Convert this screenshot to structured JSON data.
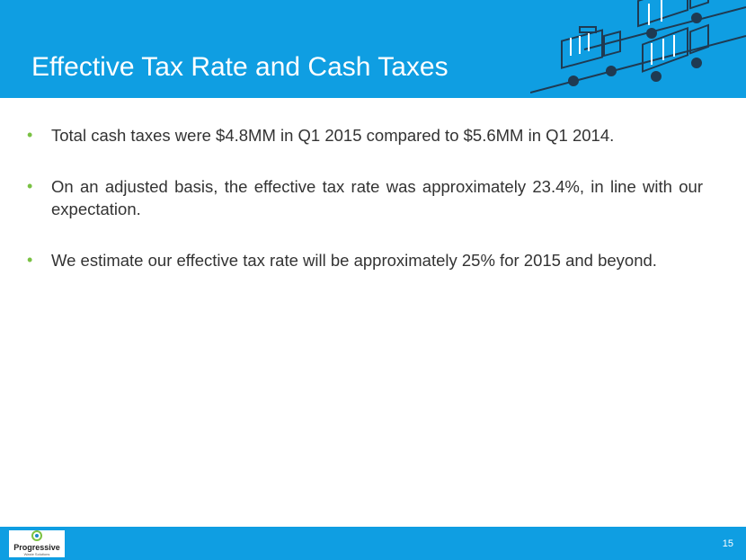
{
  "header": {
    "title": "Effective Tax Rate and Cash Taxes"
  },
  "bullets": [
    "Total cash taxes were $4.8MM in Q1 2015 compared to $5.6MM in Q1 2014.",
    "On an adjusted basis, the effective tax rate was approximately 23.4%, in line with our expectation.",
    "We estimate our effective tax rate will be approximately 25% for 2015 and beyond."
  ],
  "footer": {
    "logo_text": "Progressive",
    "logo_subtext": "Waste Solutions",
    "page_number": "15"
  },
  "colors": {
    "header_blue": "#0f9ee2",
    "bullet_green": "#79c143",
    "logo_green": "#7dc242",
    "logo_blue": "#1e88c7"
  },
  "icons": [
    "garbage-truck-icon",
    "garbage-truck-icon",
    "garbage-truck-icon",
    "garbage-truck-icon",
    "progressive-logo-icon"
  ]
}
